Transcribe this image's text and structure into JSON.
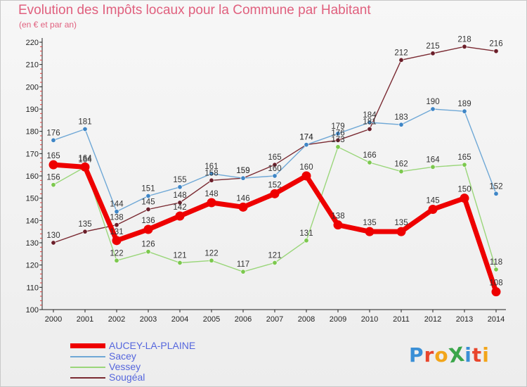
{
  "header": {
    "title": "Evolution des Impôts locaux pour la Commune par Habitant",
    "subtitle": "(en € et par an)"
  },
  "logo": {
    "text": "ProXiti",
    "colors": [
      "#3a8fd6",
      "#e8452c",
      "#f2a51a",
      "#3aa64a",
      "#3a8fd6",
      "#e8452c",
      "#f2a51a"
    ]
  },
  "chart_data": {
    "type": "line",
    "title": "Evolution des Impôts locaux pour la Commune par Habitant",
    "subtitle": "(en € et par an)",
    "xlabel": "",
    "ylabel": "",
    "ylim": [
      100,
      220
    ],
    "yticks": [
      100,
      110,
      120,
      130,
      140,
      150,
      160,
      170,
      180,
      190,
      200,
      210,
      220
    ],
    "grid": false,
    "legend": "bottom-left",
    "x": [
      "2000",
      "2001",
      "2002",
      "2003",
      "2004",
      "2005",
      "2006",
      "2007",
      "2008",
      "2009",
      "2010",
      "2011",
      "2012",
      "2013",
      "2014"
    ],
    "series": [
      {
        "name": "Sougéal",
        "color": "#7a2a32",
        "marker": "#6b1f2a",
        "values": [
          130,
          135,
          138,
          145,
          148,
          158,
          159,
          165,
          174,
          176,
          181,
          212,
          215,
          218,
          216
        ],
        "labels": [
          "130",
          "135",
          "138",
          "145",
          "148",
          "158",
          "159",
          "165",
          "174",
          "176",
          "181",
          "212",
          "215",
          "218",
          "216"
        ]
      },
      {
        "name": "Vessey",
        "color": "#9ad67a",
        "marker": "#7cc84e",
        "values": [
          156,
          164,
          122,
          126,
          121,
          122,
          117,
          121,
          131,
          173,
          166,
          162,
          164,
          165,
          118
        ],
        "labels": [
          "156",
          "164",
          "122",
          "126",
          "121",
          "122",
          "117",
          "121",
          "131",
          "173",
          "166",
          "162",
          "164",
          "165",
          "118"
        ]
      },
      {
        "name": "Sacey",
        "color": "#6fa8d6",
        "marker": "#3f86c6",
        "values": [
          176,
          181,
          144,
          151,
          155,
          161,
          159,
          160,
          174,
          179,
          184,
          183,
          190,
          189,
          152
        ],
        "labels": [
          "176",
          "181",
          "144",
          "151",
          "155",
          "161",
          "159",
          "160",
          "174",
          "179",
          "184",
          "183",
          "190",
          "189",
          "152"
        ]
      },
      {
        "name": "AUCEY-LA-PLAINE",
        "color": "#ee0000",
        "marker": "#ee0000",
        "values": [
          165,
          164,
          131,
          136,
          142,
          148,
          146,
          152,
          160,
          138,
          135,
          135,
          145,
          150,
          108
        ],
        "labels": [
          "165",
          "164",
          "131",
          "136",
          "142",
          "148",
          "146",
          "152",
          "160",
          "138",
          "135",
          "135",
          "145",
          "150",
          "108"
        ]
      }
    ],
    "legend_order": [
      "AUCEY-LA-PLAINE",
      "Sacey",
      "Vessey",
      "Sougéal"
    ]
  }
}
